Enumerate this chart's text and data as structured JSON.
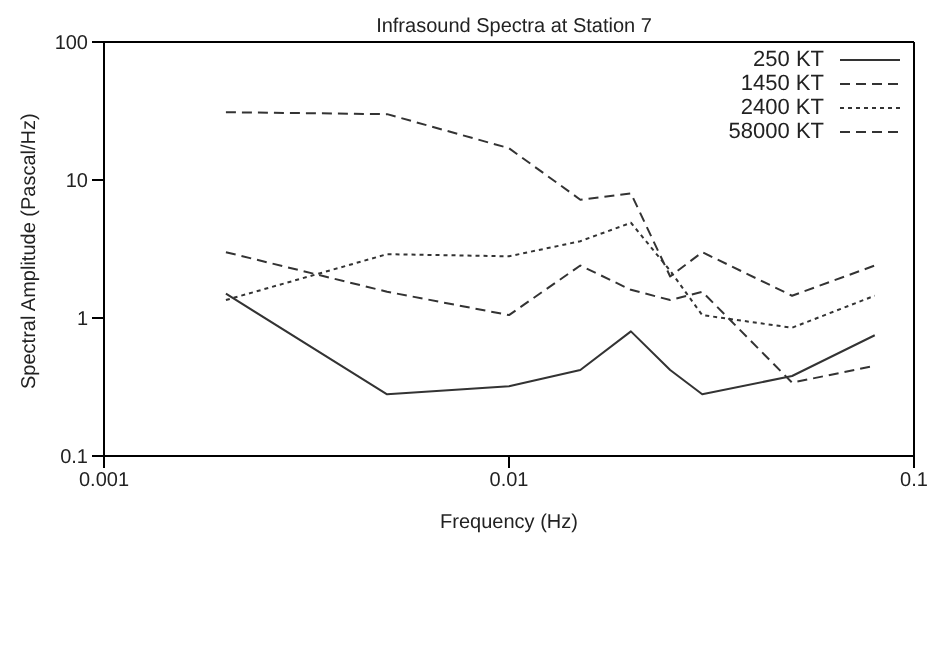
{
  "chart_data": {
    "type": "line",
    "title": "Infrasound Spectra at Station 7",
    "xlabel": "Frequency (Hz)",
    "ylabel": "Spectral Amplitude (Pascal/Hz)",
    "x": [
      0.002,
      0.005,
      0.01,
      0.015,
      0.02,
      0.025,
      0.03,
      0.05,
      0.08
    ],
    "series": [
      {
        "name": "250 KT",
        "color": "#333333",
        "line_style": "solid",
        "values": [
          1.5,
          0.28,
          0.32,
          0.42,
          0.8,
          0.42,
          0.28,
          0.38,
          0.75
        ]
      },
      {
        "name": "1450 KT",
        "color": "#333333",
        "line_style": "dashed",
        "values": [
          3.0,
          1.55,
          1.05,
          2.4,
          1.6,
          1.35,
          1.55,
          0.34,
          0.45
        ]
      },
      {
        "name": "2400 KT",
        "color": "#333333",
        "line_style": "dotted",
        "values": [
          1.35,
          2.9,
          2.8,
          3.6,
          4.9,
          2.2,
          1.05,
          0.85,
          1.45
        ]
      },
      {
        "name": "58000 KT",
        "color": "#333333",
        "line_style": "dashed",
        "values": [
          31,
          30,
          17,
          7.2,
          8,
          2.0,
          3.0,
          1.45,
          2.4
        ]
      }
    ],
    "log": "xy",
    "xlim": [
      0.001,
      0.1
    ],
    "xticks": [
      0.001,
      0.01,
      0.1
    ],
    "ylim": [
      0.1,
      100
    ],
    "yticks": [
      0.1,
      1,
      10,
      100
    ],
    "grid": false,
    "legend": "top right",
    "marker": "none"
  }
}
